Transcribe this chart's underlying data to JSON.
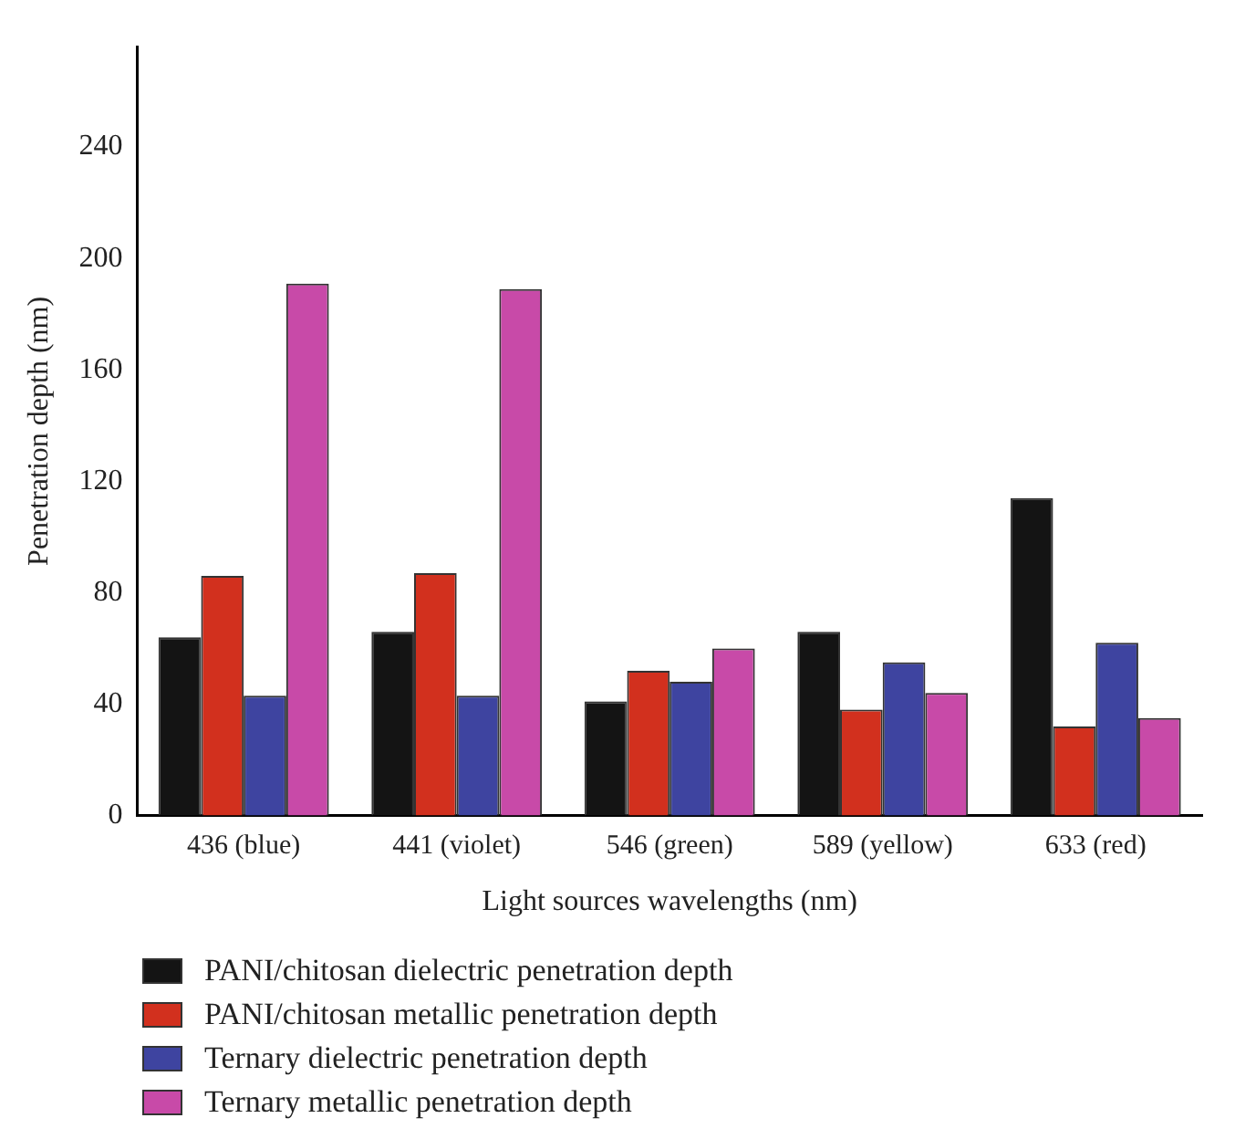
{
  "chart_data": {
    "type": "bar",
    "xlabel": "Light sources wavelengths (nm)",
    "ylabel": "Penetration depth (nm)",
    "categories": [
      "436 (blue)",
      "441 (violet)",
      "546 (green)",
      "589 (yellow)",
      "633 (red)"
    ],
    "series": [
      {
        "name": "PANI/chitosan dielectric penetration depth",
        "color": "#141414",
        "values": [
          64,
          66,
          41,
          66,
          114
        ]
      },
      {
        "name": "PANI/chitosan metallic penetration depth",
        "color": "#d2301e",
        "values": [
          86,
          87,
          52,
          38,
          32
        ]
      },
      {
        "name": "Ternary dielectric penetration depth",
        "color": "#3e44a0",
        "values": [
          43,
          43,
          48,
          55,
          62
        ]
      },
      {
        "name": "Ternary metallic penetration depth",
        "color": "#c84aa8",
        "values": [
          191,
          189,
          60,
          44,
          35
        ]
      }
    ],
    "ylim": [
      0,
      276
    ],
    "yticks": [
      0,
      40,
      80,
      120,
      160,
      200,
      240
    ],
    "grid": false,
    "legend": "bottom"
  }
}
